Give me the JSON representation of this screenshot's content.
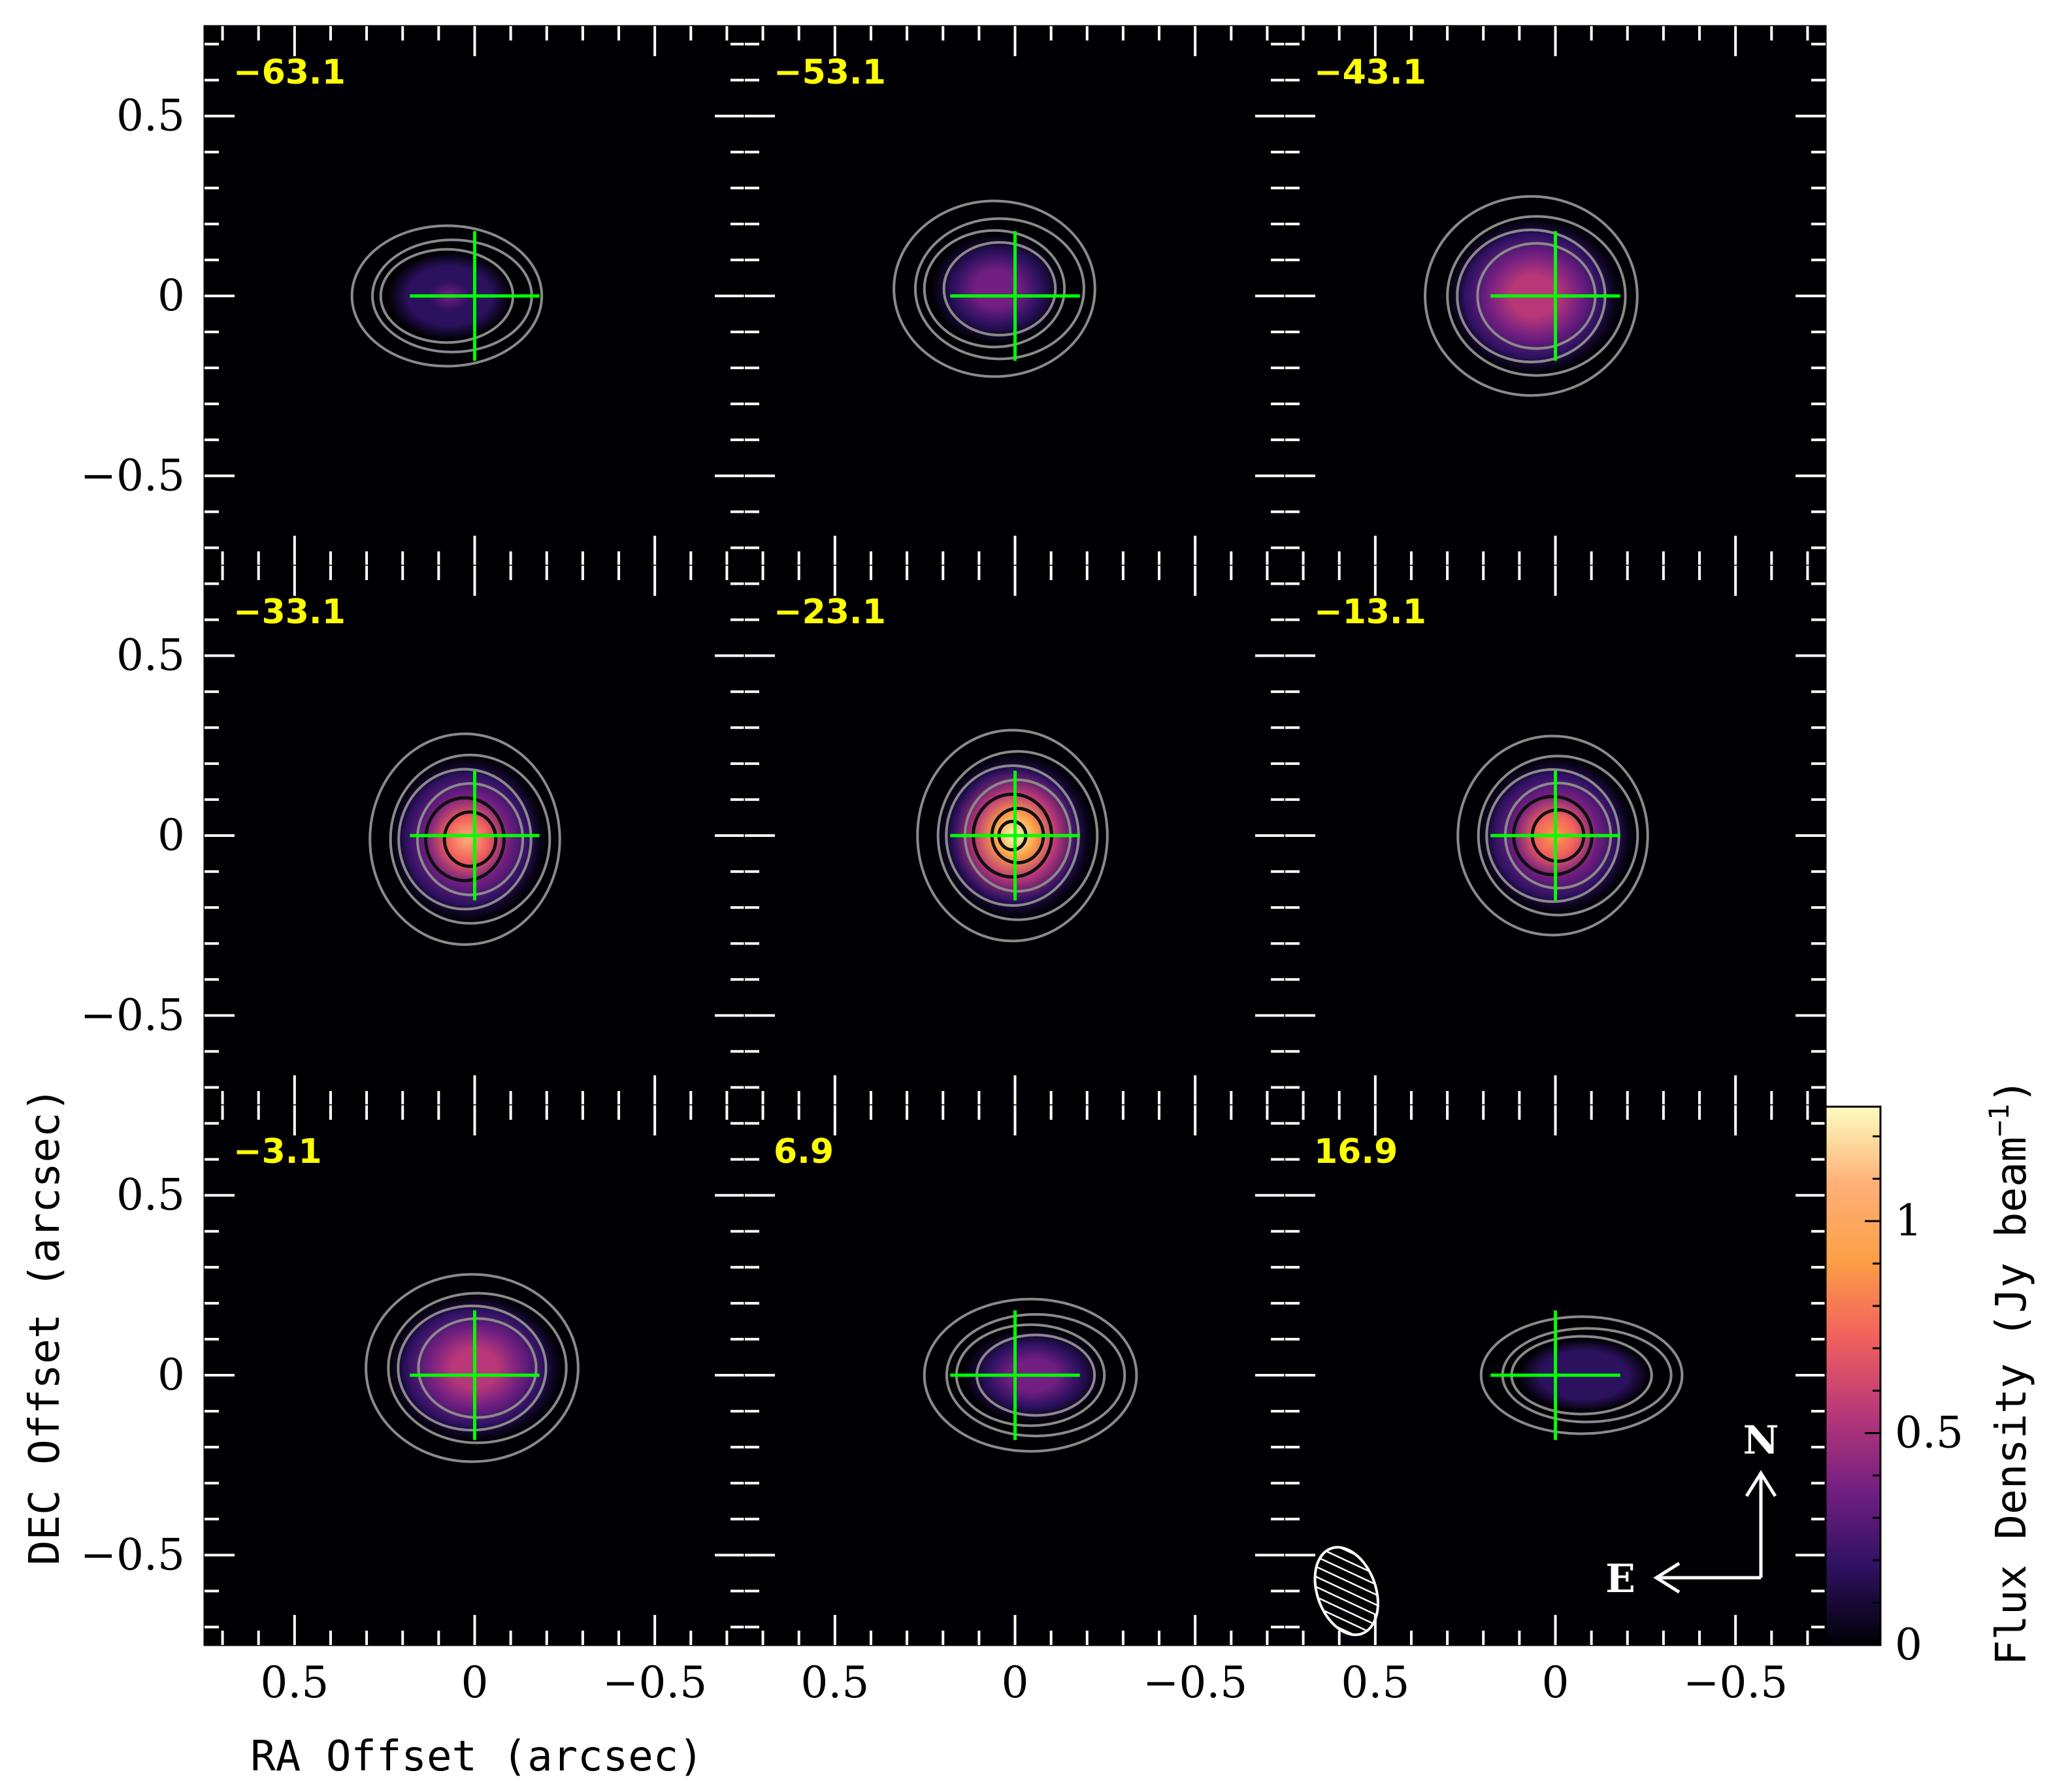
{
  "chart_data": {
    "type": "heatmap",
    "description_grid": "3x3 channel maps",
    "xlabel": "RA Offset (arcsec)",
    "ylabel": "DEC Offset (arcsec)",
    "xlim": [
      0.75,
      -0.75
    ],
    "ylim": [
      -0.75,
      0.75
    ],
    "xticks": [
      0.5,
      0,
      -0.5
    ],
    "yticks": [
      0.5,
      0,
      -0.5
    ],
    "xtick_labels": [
      "0.5",
      "0",
      "−0.5"
    ],
    "ytick_labels": [
      "0.5",
      "0",
      "−0.5"
    ],
    "colorbar": {
      "label": "Flux Density (Jy beam",
      "label_superscript": "−1",
      "label_close": ")",
      "range": [
        0,
        1.27
      ],
      "ticks": [
        0,
        0.5,
        1
      ],
      "tick_labels": [
        "0",
        "0.5",
        "1"
      ],
      "colormap": [
        "#000004",
        "#2c115f",
        "#721f81",
        "#b73779",
        "#f1605d",
        "#fc9f47",
        "#feb078",
        "#fcfdbf"
      ]
    },
    "panels": [
      {
        "velocity": "−63.1",
        "peak": 0.3,
        "cx": 0.07,
        "cy": 0.0,
        "sx": 0.17,
        "sy": 0.12
      },
      {
        "velocity": "−53.1",
        "peak": 0.45,
        "cx": 0.05,
        "cy": 0.02,
        "sx": 0.18,
        "sy": 0.15
      },
      {
        "velocity": "−43.1",
        "peak": 0.62,
        "cx": 0.06,
        "cy": 0.0,
        "sx": 0.19,
        "sy": 0.17
      },
      {
        "velocity": "−33.1",
        "peak": 1.0,
        "cx": 0.02,
        "cy": -0.01,
        "sx": 0.17,
        "sy": 0.18
      },
      {
        "velocity": "−23.1",
        "peak": 1.25,
        "cx": 0.0,
        "cy": 0.0,
        "sx": 0.17,
        "sy": 0.18
      },
      {
        "velocity": "−13.1",
        "peak": 0.95,
        "cx": 0.0,
        "cy": 0.0,
        "sx": 0.17,
        "sy": 0.17
      },
      {
        "velocity": "−3.1",
        "peak": 0.62,
        "cx": 0.0,
        "cy": 0.02,
        "sx": 0.19,
        "sy": 0.16
      },
      {
        "velocity": "6.9",
        "peak": 0.38,
        "cx": -0.05,
        "cy": 0.0,
        "sx": 0.19,
        "sy": 0.13
      },
      {
        "velocity": "16.9",
        "peak": 0.22,
        "cx": -0.08,
        "cy": 0.0,
        "sx": 0.18,
        "sy": 0.1
      }
    ],
    "marker": {
      "type": "cross",
      "center": [
        0,
        0
      ],
      "half_length": 0.18,
      "color": "#00ff00"
    },
    "compass": {
      "north": "N",
      "east": "E"
    },
    "beam": {
      "ra": 0.58,
      "dec": -0.6,
      "major": 0.14,
      "minor": 0.09
    }
  }
}
